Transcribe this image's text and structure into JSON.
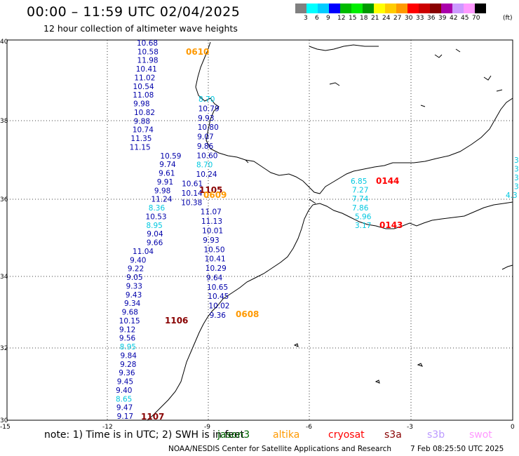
{
  "header": {
    "title": "00:00 – 11:59 UTC 02/04/2025",
    "subtitle": "12 hour collection of altimeter wave heights"
  },
  "color_scale": {
    "unit_label": "(ft)",
    "bins": [
      {
        "label": "3",
        "color": "#808080"
      },
      {
        "label": "6",
        "color": "#00ffff"
      },
      {
        "label": "9",
        "color": "#00ccff"
      },
      {
        "label": "12",
        "color": "#0000ff"
      },
      {
        "label": "15",
        "color": "#00bb00"
      },
      {
        "label": "18",
        "color": "#00ee00"
      },
      {
        "label": "21",
        "color": "#009900"
      },
      {
        "label": "24",
        "color": "#ffff00"
      },
      {
        "label": "27",
        "color": "#ffcc00"
      },
      {
        "label": "30",
        "color": "#ff9900"
      },
      {
        "label": "33",
        "color": "#ff0000"
      },
      {
        "label": "36",
        "color": "#cc0000"
      },
      {
        "label": "39",
        "color": "#880000"
      },
      {
        "label": "42",
        "color": "#aa00aa"
      },
      {
        "label": "45",
        "color": "#cc99ff"
      },
      {
        "label": "70",
        "color": "#ff99ff"
      },
      {
        "label": "",
        "color": "#000000"
      }
    ]
  },
  "axes": {
    "lon_ticks": [
      "-15",
      "-12",
      "-9",
      "-6",
      "-3",
      "0"
    ],
    "lat_ticks": [
      "40",
      "38",
      "36",
      "34",
      "32",
      "30"
    ]
  },
  "passes": {
    "left_track_values": [
      "10.68",
      "10.58",
      "11.98",
      "10.41",
      "11.02",
      "10.54",
      "11.08",
      "9.98",
      "10.82",
      "9.88",
      "10.74",
      "11.35",
      "11.15",
      "10.59",
      "9.74",
      "9.61",
      "9.91",
      "9.98",
      "11.24",
      "8.36",
      "10.53",
      "8.95",
      "9.04",
      "9.66",
      "11.04",
      "9.40",
      "9.22",
      "9.05",
      "9.33",
      "9.43",
      "9.34",
      "9.68",
      "10.15",
      "9.12",
      "9.56",
      "8.95",
      "9.84",
      "9.28",
      "9.36",
      "9.45",
      "9.40",
      "8.65",
      "9.47",
      "9.17"
    ],
    "right_track_values": [
      "8.70",
      "10.79",
      "9.93",
      "10.80",
      "9.07",
      "9.86",
      "10.60",
      "8.70",
      "10.24",
      "10.61",
      "10.14",
      "10.38",
      "11.07",
      "11.13",
      "10.01",
      "9.93",
      "10.50",
      "10.41",
      "10.29",
      "9.64",
      "10.65",
      "10.45",
      "10.02",
      "9.36"
    ],
    "med_track_values": [
      "6.85",
      "7.27",
      "7.74",
      "7.86",
      "5.96",
      "3.17"
    ],
    "east_edge_values": [
      "3",
      "3",
      "3.",
      "3.",
      "4.3"
    ],
    "time_labels": [
      {
        "text": "0610",
        "color": "#ff9900"
      },
      {
        "text": "1105",
        "color": "#880000"
      },
      {
        "text": "0609",
        "color": "#ff9900"
      },
      {
        "text": "0144",
        "color": "#ff0000"
      },
      {
        "text": "0143",
        "color": "#ff0000"
      },
      {
        "text": "0608",
        "color": "#ff9900"
      },
      {
        "text": "1106",
        "color": "#880000"
      },
      {
        "text": "1107",
        "color": "#880000"
      }
    ]
  },
  "footer": {
    "note": "note:  1) Time is in UTC;  2) SWH is in feet",
    "satellites": [
      {
        "name": "jason3",
        "color": "#006600"
      },
      {
        "name": "altika",
        "color": "#ff9900"
      },
      {
        "name": "cryosat",
        "color": "#ff0000"
      },
      {
        "name": "s3a",
        "color": "#880000"
      },
      {
        "name": "s3b",
        "color": "#bb99ff"
      },
      {
        "name": "swot",
        "color": "#ff99ff"
      }
    ],
    "credit": "NOAA/NESDIS Center for Satellite Applications and Research",
    "timestamp": "7 Feb 08:25:50 UTC 2025"
  }
}
